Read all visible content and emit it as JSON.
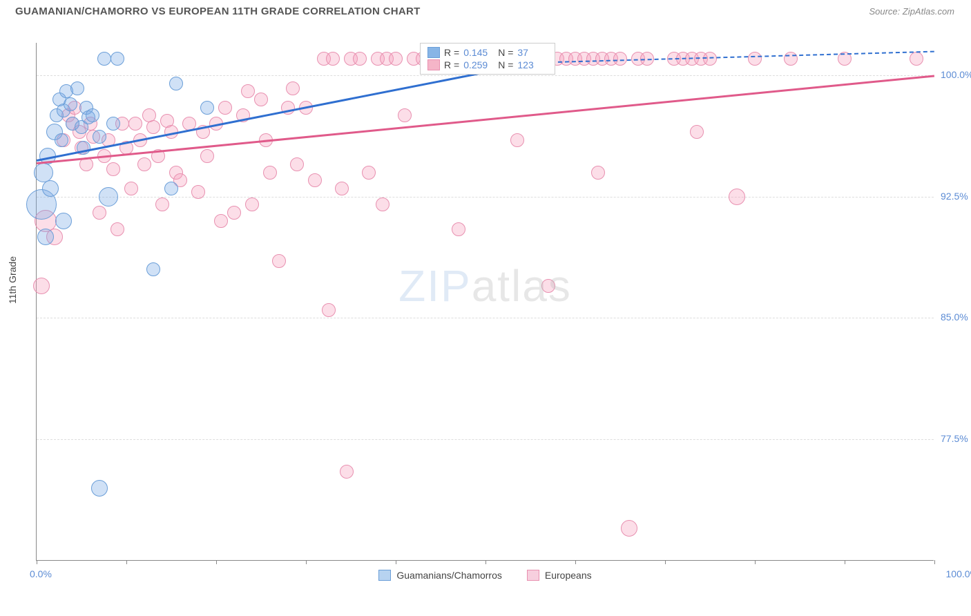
{
  "title": "GUAMANIAN/CHAMORRO VS EUROPEAN 11TH GRADE CORRELATION CHART",
  "source": "Source: ZipAtlas.com",
  "ylabel": "11th Grade",
  "watermark_z": "ZIP",
  "watermark_rest": "atlas",
  "chart": {
    "type": "scatter",
    "xlim": [
      0,
      100
    ],
    "ylim": [
      70,
      102
    ],
    "y_ticks": [
      {
        "v": 100.0,
        "label": "100.0%"
      },
      {
        "v": 92.5,
        "label": "92.5%"
      },
      {
        "v": 85.0,
        "label": "85.0%"
      },
      {
        "v": 77.5,
        "label": "77.5%"
      }
    ],
    "x_ticks": [
      0,
      10,
      20,
      30,
      40,
      50,
      60,
      70,
      80,
      90,
      100
    ],
    "x_label_0": "0.0%",
    "x_label_100": "100.0%",
    "background_color": "#ffffff",
    "grid_color": "#dddddd",
    "axis_color": "#888888",
    "series": [
      {
        "name": "Guamanians/Chamorros",
        "color_fill": "rgba(120,170,230,0.35)",
        "color_stroke": "#6a9ed8",
        "color_hex": "#88b5e6",
        "R": "0.145",
        "N": "37",
        "trend": {
          "x1": 0,
          "y1": 94.8,
          "x2": 55,
          "y2": 100.8,
          "dash_x2": 100,
          "dash_y2": 101.5,
          "color": "#2f6fd0"
        },
        "points": [
          {
            "x": 0.5,
            "y": 92.0,
            "r": 22
          },
          {
            "x": 0.8,
            "y": 94.0,
            "r": 14
          },
          {
            "x": 1.2,
            "y": 95.0,
            "r": 12
          },
          {
            "x": 1.5,
            "y": 93.0,
            "r": 12
          },
          {
            "x": 1.0,
            "y": 90.0,
            "r": 12
          },
          {
            "x": 2.0,
            "y": 96.5,
            "r": 12
          },
          {
            "x": 2.2,
            "y": 97.5,
            "r": 10
          },
          {
            "x": 2.5,
            "y": 98.5,
            "r": 10
          },
          {
            "x": 2.8,
            "y": 96.0,
            "r": 10
          },
          {
            "x": 3.0,
            "y": 97.8,
            "r": 10
          },
          {
            "x": 3.3,
            "y": 99.0,
            "r": 10
          },
          {
            "x": 3.8,
            "y": 98.2,
            "r": 10
          },
          {
            "x": 4.0,
            "y": 97.0,
            "r": 10
          },
          {
            "x": 4.5,
            "y": 99.2,
            "r": 10
          },
          {
            "x": 5.0,
            "y": 96.8,
            "r": 10
          },
          {
            "x": 5.2,
            "y": 95.5,
            "r": 10
          },
          {
            "x": 5.5,
            "y": 98.0,
            "r": 10
          },
          {
            "x": 5.8,
            "y": 97.4,
            "r": 10
          },
          {
            "x": 3.0,
            "y": 91.0,
            "r": 12
          },
          {
            "x": 6.2,
            "y": 97.5,
            "r": 10
          },
          {
            "x": 7.0,
            "y": 96.2,
            "r": 10
          },
          {
            "x": 7.5,
            "y": 101.0,
            "r": 10
          },
          {
            "x": 8.0,
            "y": 92.5,
            "r": 14
          },
          {
            "x": 8.5,
            "y": 97.0,
            "r": 10
          },
          {
            "x": 9.0,
            "y": 101.0,
            "r": 10
          },
          {
            "x": 13.0,
            "y": 88.0,
            "r": 10
          },
          {
            "x": 15.0,
            "y": 93.0,
            "r": 10
          },
          {
            "x": 15.5,
            "y": 99.5,
            "r": 10
          },
          {
            "x": 19.0,
            "y": 98.0,
            "r": 10
          },
          {
            "x": 7.0,
            "y": 74.5,
            "r": 12
          }
        ]
      },
      {
        "name": "Europeans",
        "color_fill": "rgba(245,160,190,0.35)",
        "color_stroke": "#e890b0",
        "color_hex": "#f5b5c8",
        "R": "0.259",
        "N": "123",
        "trend": {
          "x1": 0,
          "y1": 94.6,
          "x2": 100,
          "y2": 100.0,
          "color": "#e05a8a"
        },
        "points": [
          {
            "x": 0.5,
            "y": 87.0,
            "r": 12
          },
          {
            "x": 1.0,
            "y": 91.0,
            "r": 16
          },
          {
            "x": 2.0,
            "y": 90.0,
            "r": 12
          },
          {
            "x": 3.0,
            "y": 96.0,
            "r": 10
          },
          {
            "x": 3.5,
            "y": 97.5,
            "r": 10
          },
          {
            "x": 4.0,
            "y": 97.0,
            "r": 10
          },
          {
            "x": 4.2,
            "y": 98.0,
            "r": 10
          },
          {
            "x": 4.8,
            "y": 96.5,
            "r": 10
          },
          {
            "x": 5.0,
            "y": 95.5,
            "r": 10
          },
          {
            "x": 5.5,
            "y": 94.5,
            "r": 10
          },
          {
            "x": 6.0,
            "y": 97.0,
            "r": 10
          },
          {
            "x": 6.3,
            "y": 96.2,
            "r": 10
          },
          {
            "x": 7.0,
            "y": 91.5,
            "r": 10
          },
          {
            "x": 7.5,
            "y": 95.0,
            "r": 10
          },
          {
            "x": 8.0,
            "y": 96.0,
            "r": 10
          },
          {
            "x": 8.5,
            "y": 94.2,
            "r": 10
          },
          {
            "x": 9.0,
            "y": 90.5,
            "r": 10
          },
          {
            "x": 9.5,
            "y": 97.0,
            "r": 10
          },
          {
            "x": 10.0,
            "y": 95.5,
            "r": 10
          },
          {
            "x": 10.5,
            "y": 93.0,
            "r": 10
          },
          {
            "x": 11.0,
            "y": 97.0,
            "r": 10
          },
          {
            "x": 11.5,
            "y": 96.0,
            "r": 10
          },
          {
            "x": 12.0,
            "y": 94.5,
            "r": 10
          },
          {
            "x": 12.5,
            "y": 97.5,
            "r": 10
          },
          {
            "x": 13.0,
            "y": 96.8,
            "r": 10
          },
          {
            "x": 13.5,
            "y": 95.0,
            "r": 10
          },
          {
            "x": 14.0,
            "y": 92.0,
            "r": 10
          },
          {
            "x": 14.5,
            "y": 97.2,
            "r": 10
          },
          {
            "x": 15.0,
            "y": 96.5,
            "r": 10
          },
          {
            "x": 15.5,
            "y": 94.0,
            "r": 10
          },
          {
            "x": 16.0,
            "y": 93.5,
            "r": 10
          },
          {
            "x": 17.0,
            "y": 97.0,
            "r": 10
          },
          {
            "x": 18.0,
            "y": 92.8,
            "r": 10
          },
          {
            "x": 18.5,
            "y": 96.5,
            "r": 10
          },
          {
            "x": 19.0,
            "y": 95.0,
            "r": 10
          },
          {
            "x": 20.0,
            "y": 97.0,
            "r": 10
          },
          {
            "x": 20.5,
            "y": 91.0,
            "r": 10
          },
          {
            "x": 21.0,
            "y": 98.0,
            "r": 10
          },
          {
            "x": 22.0,
            "y": 91.5,
            "r": 10
          },
          {
            "x": 23.0,
            "y": 97.5,
            "r": 10
          },
          {
            "x": 23.5,
            "y": 99.0,
            "r": 10
          },
          {
            "x": 24.0,
            "y": 92.0,
            "r": 10
          },
          {
            "x": 25.0,
            "y": 98.5,
            "r": 10
          },
          {
            "x": 25.5,
            "y": 96.0,
            "r": 10
          },
          {
            "x": 26.0,
            "y": 94.0,
            "r": 10
          },
          {
            "x": 27.0,
            "y": 88.5,
            "r": 10
          },
          {
            "x": 28.0,
            "y": 98.0,
            "r": 10
          },
          {
            "x": 28.5,
            "y": 99.2,
            "r": 10
          },
          {
            "x": 29.0,
            "y": 94.5,
            "r": 10
          },
          {
            "x": 30.0,
            "y": 98.0,
            "r": 10
          },
          {
            "x": 31.0,
            "y": 93.5,
            "r": 10
          },
          {
            "x": 32.0,
            "y": 101.0,
            "r": 10
          },
          {
            "x": 32.5,
            "y": 85.5,
            "r": 10
          },
          {
            "x": 33.0,
            "y": 101.0,
            "r": 10
          },
          {
            "x": 34.0,
            "y": 93.0,
            "r": 10
          },
          {
            "x": 34.5,
            "y": 75.5,
            "r": 10
          },
          {
            "x": 35.0,
            "y": 101.0,
            "r": 10
          },
          {
            "x": 36.0,
            "y": 101.0,
            "r": 10
          },
          {
            "x": 37.0,
            "y": 94.0,
            "r": 10
          },
          {
            "x": 38.0,
            "y": 101.0,
            "r": 10
          },
          {
            "x": 38.5,
            "y": 92.0,
            "r": 10
          },
          {
            "x": 39.0,
            "y": 101.0,
            "r": 10
          },
          {
            "x": 40.0,
            "y": 101.0,
            "r": 10
          },
          {
            "x": 41.0,
            "y": 97.5,
            "r": 10
          },
          {
            "x": 42.0,
            "y": 101.0,
            "r": 10
          },
          {
            "x": 43.0,
            "y": 101.0,
            "r": 10
          },
          {
            "x": 44.0,
            "y": 101.0,
            "r": 10
          },
          {
            "x": 45.0,
            "y": 101.0,
            "r": 10
          },
          {
            "x": 46.0,
            "y": 101.0,
            "r": 10
          },
          {
            "x": 47.0,
            "y": 90.5,
            "r": 10
          },
          {
            "x": 48.0,
            "y": 101.0,
            "r": 10
          },
          {
            "x": 49.0,
            "y": 101.0,
            "r": 10
          },
          {
            "x": 50.0,
            "y": 101.0,
            "r": 10
          },
          {
            "x": 51.0,
            "y": 101.0,
            "r": 10
          },
          {
            "x": 52.0,
            "y": 101.0,
            "r": 10
          },
          {
            "x": 53.0,
            "y": 101.0,
            "r": 10
          },
          {
            "x": 53.5,
            "y": 96.0,
            "r": 10
          },
          {
            "x": 54.0,
            "y": 101.0,
            "r": 10
          },
          {
            "x": 55.0,
            "y": 101.0,
            "r": 10
          },
          {
            "x": 56.0,
            "y": 101.0,
            "r": 10
          },
          {
            "x": 57.0,
            "y": 87.0,
            "r": 10
          },
          {
            "x": 58.0,
            "y": 101.0,
            "r": 10
          },
          {
            "x": 59.0,
            "y": 101.0,
            "r": 10
          },
          {
            "x": 60.0,
            "y": 101.0,
            "r": 10
          },
          {
            "x": 61.0,
            "y": 101.0,
            "r": 10
          },
          {
            "x": 62.0,
            "y": 101.0,
            "r": 10
          },
          {
            "x": 62.5,
            "y": 94.0,
            "r": 10
          },
          {
            "x": 63.0,
            "y": 101.0,
            "r": 10
          },
          {
            "x": 64.0,
            "y": 101.0,
            "r": 10
          },
          {
            "x": 65.0,
            "y": 101.0,
            "r": 10
          },
          {
            "x": 66.0,
            "y": 72.0,
            "r": 12
          },
          {
            "x": 67.0,
            "y": 101.0,
            "r": 10
          },
          {
            "x": 68.0,
            "y": 101.0,
            "r": 10
          },
          {
            "x": 71.0,
            "y": 101.0,
            "r": 10
          },
          {
            "x": 72.0,
            "y": 101.0,
            "r": 10
          },
          {
            "x": 73.0,
            "y": 101.0,
            "r": 10
          },
          {
            "x": 73.5,
            "y": 96.5,
            "r": 10
          },
          {
            "x": 74.0,
            "y": 101.0,
            "r": 10
          },
          {
            "x": 75.0,
            "y": 101.0,
            "r": 10
          },
          {
            "x": 78.0,
            "y": 92.5,
            "r": 12
          },
          {
            "x": 80.0,
            "y": 101.0,
            "r": 10
          },
          {
            "x": 84.0,
            "y": 101.0,
            "r": 10
          },
          {
            "x": 90.0,
            "y": 101.0,
            "r": 10
          },
          {
            "x": 98.0,
            "y": 101.0,
            "r": 10
          }
        ]
      }
    ],
    "legend_box": {
      "r_label": "R =",
      "n_label": "N ="
    },
    "bottom_legend": [
      {
        "label": "Guamanians/Chamorros",
        "fill": "#b7d3f0",
        "stroke": "#6a9ed8"
      },
      {
        "label": "Europeans",
        "fill": "#f7cfde",
        "stroke": "#e890b0"
      }
    ]
  }
}
